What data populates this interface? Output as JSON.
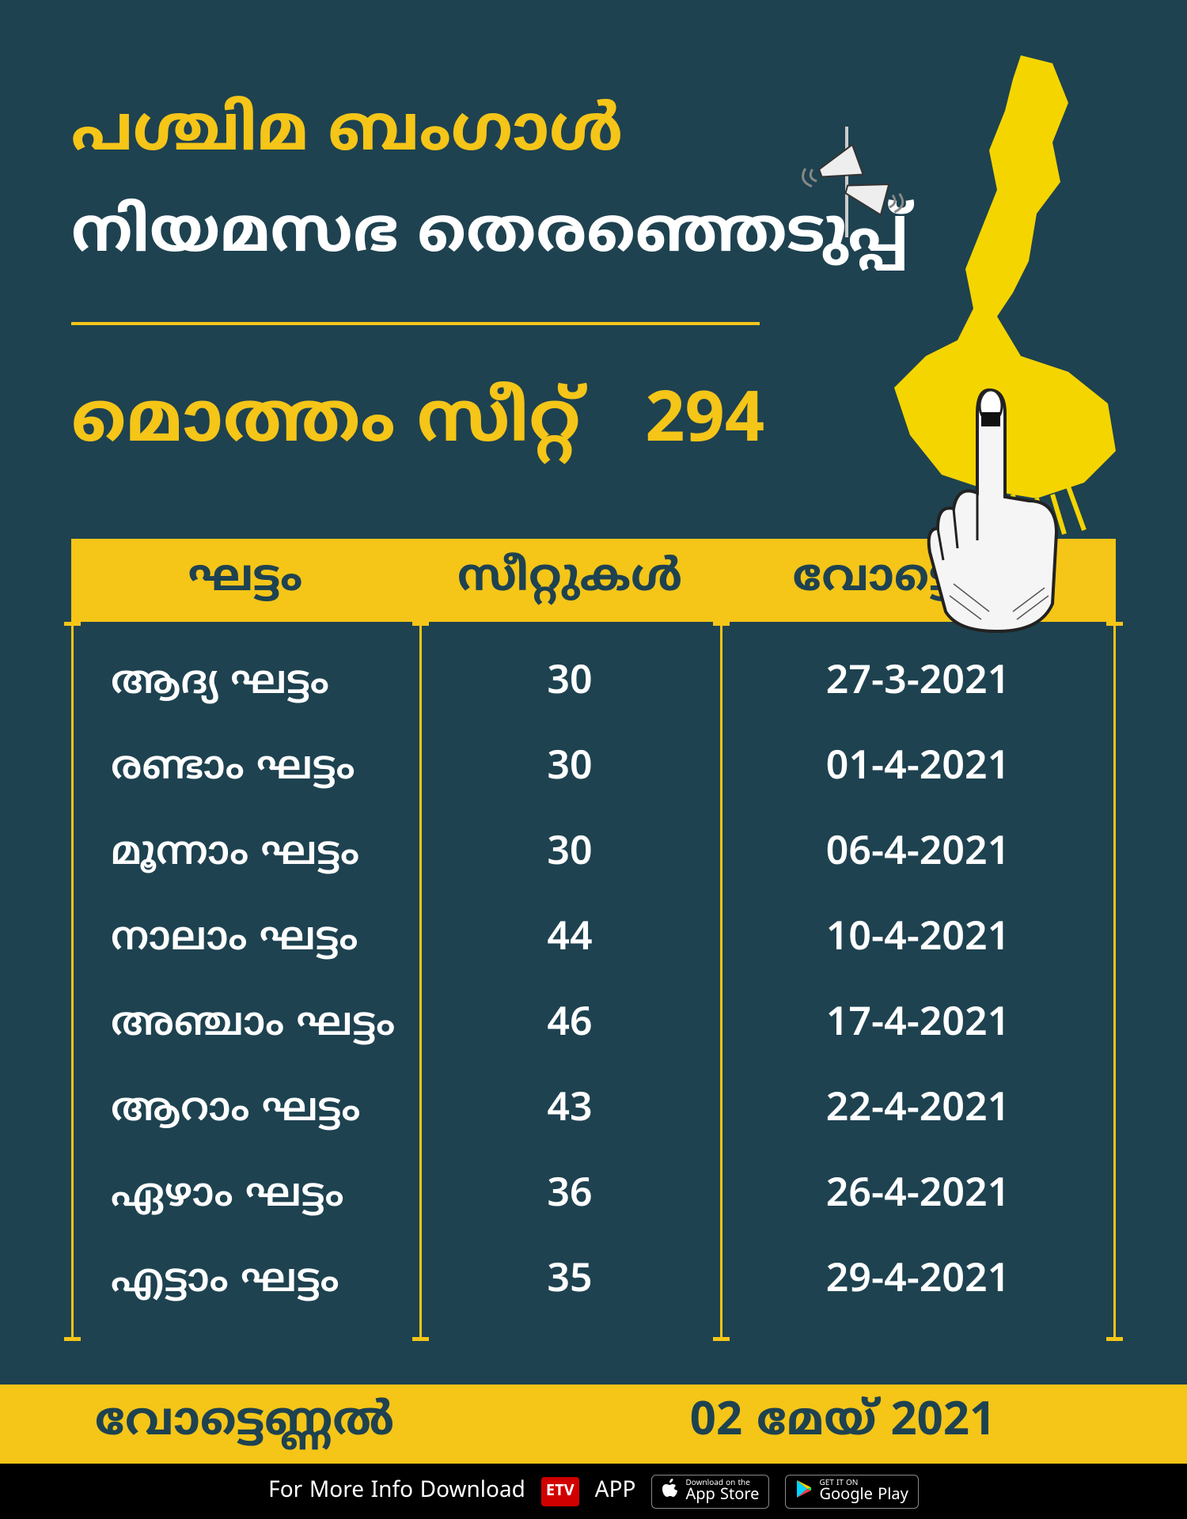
{
  "colors": {
    "bg": "#1e4250",
    "accent": "#f5c518",
    "text": "#ffffff",
    "dark": "#1e4250",
    "black": "#000000",
    "map_fill": "#f5d500"
  },
  "header": {
    "line1": "പശ്ചിമ ബംഗാൾ",
    "line2": "നിയമസഭ തെരഞ്ഞെടുപ്പ്",
    "total_label": "മൊത്തം സീറ്റ്",
    "total_value": "294"
  },
  "table": {
    "headers": {
      "phase": "ഘട്ടം",
      "seats": "സീറ്റുകൾ",
      "date": "വോട്ടെടുപ്പ്"
    },
    "rows": [
      {
        "phase": "ആദ്യ ഘട്ടം",
        "seats": "30",
        "date": "27-3-2021"
      },
      {
        "phase": "രണ്ടാം ഘട്ടം",
        "seats": "30",
        "date": "01-4-2021"
      },
      {
        "phase": "മൂന്നാം ഘട്ടം",
        "seats": "30",
        "date": "06-4-2021"
      },
      {
        "phase": "നാലാം ഘട്ടം",
        "seats": "44",
        "date": "10-4-2021"
      },
      {
        "phase": "അഞ്ചാം ഘട്ടം",
        "seats": "46",
        "date": "17-4-2021"
      },
      {
        "phase": "ആറാം ഘട്ടം",
        "seats": "43",
        "date": "22-4-2021"
      },
      {
        "phase": "ഏഴാം ഘട്ടം",
        "seats": "36",
        "date": "26-4-2021"
      },
      {
        "phase": "എട്ടാം ഘട്ടം",
        "seats": "35",
        "date": "29-4-2021"
      }
    ]
  },
  "result": {
    "label": "വോട്ടെണ്ണൽ",
    "value": "02 മേയ് 2021"
  },
  "footer": {
    "text": "For More Info Download",
    "app": "ETV",
    "app2": "APP",
    "appstore_small": "Download on the",
    "appstore_big": "App Store",
    "play_small": "GET IT ON",
    "play_big": "Google Play"
  }
}
